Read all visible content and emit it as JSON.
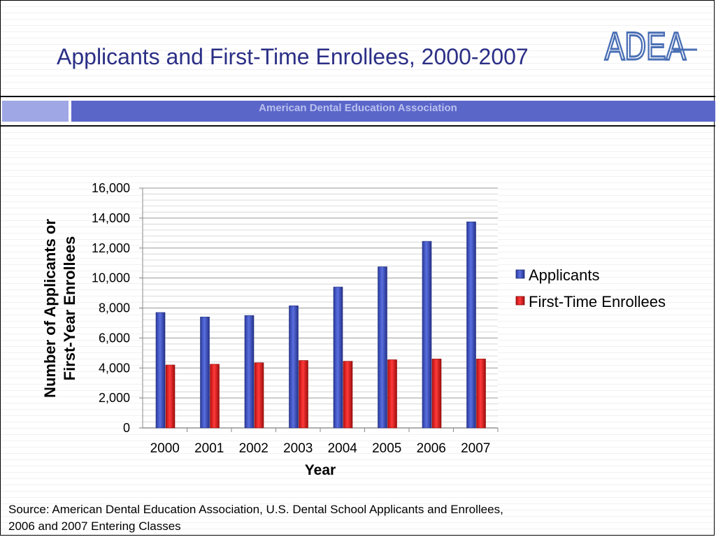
{
  "slide": {
    "title": "Applicants and First-Time Enrollees, 2000-2007",
    "logo_text": "ADEA",
    "band_text": "American Dental Education Association",
    "footnote_line1": "Source: American Dental Education Association, U.S. Dental School Applicants and Enrollees,",
    "footnote_line2": "2006 and 2007 Entering Classes"
  },
  "colors": {
    "title": "#2b2f86",
    "logo": "#4a6fb5",
    "band": "#5b66c9",
    "band_light": "#9fa8e4",
    "applicants": "#3a4fbf",
    "enrollees": "#e21a1a"
  },
  "chart_data": {
    "type": "bar",
    "title": "",
    "xlabel": "Year",
    "ylabel_lines": [
      "Number of Applicants or",
      "First-Year Enrollees"
    ],
    "categories": [
      "2000",
      "2001",
      "2002",
      "2003",
      "2004",
      "2005",
      "2006",
      "2007"
    ],
    "series": [
      {
        "name": "Applicants",
        "values": [
          7700,
          7400,
          7500,
          8150,
          9400,
          10750,
          12450,
          13750
        ]
      },
      {
        "name": "First-Time Enrollees",
        "values": [
          4200,
          4250,
          4350,
          4500,
          4450,
          4550,
          4600,
          4600
        ]
      }
    ],
    "ylim": [
      0,
      16000
    ],
    "yticks": [
      0,
      2000,
      4000,
      6000,
      8000,
      10000,
      12000,
      14000,
      16000
    ],
    "ytick_labels": [
      "0",
      "2,000",
      "4,000",
      "6,000",
      "8,000",
      "10,000",
      "12,000",
      "14,000",
      "16,000"
    ],
    "grid": true,
    "legend_position": "right"
  }
}
